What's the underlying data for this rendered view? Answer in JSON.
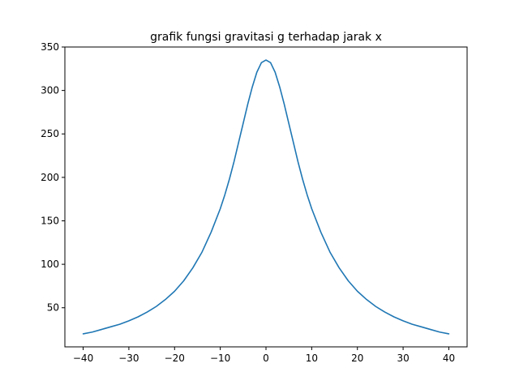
{
  "chart_data": {
    "type": "line",
    "title": "grafik fungsi gravitasi g terhadap jarak x",
    "xlabel": "",
    "ylabel": "",
    "xlim": [
      -44,
      44
    ],
    "ylim": [
      5,
      350
    ],
    "xticks": [
      -40,
      -30,
      -20,
      -10,
      0,
      10,
      20,
      30,
      40
    ],
    "xtick_labels": [
      "−40",
      "−30",
      "−20",
      "−10",
      "0",
      "10",
      "20",
      "30",
      "40"
    ],
    "yticks": [
      50,
      100,
      150,
      200,
      250,
      300,
      350
    ],
    "ytick_labels": [
      "50",
      "100",
      "150",
      "200",
      "250",
      "300",
      "350"
    ],
    "grid": false,
    "series": [
      {
        "color": "#1f77b4",
        "x": [
          -40,
          -38,
          -36,
          -34,
          -32,
          -30,
          -28,
          -26,
          -24,
          -22,
          -20,
          -18,
          -16,
          -14,
          -12,
          -10,
          -9,
          -8,
          -7,
          -6,
          -5,
          -4,
          -3,
          -2,
          -1,
          0,
          1,
          2,
          3,
          4,
          5,
          6,
          7,
          8,
          9,
          10,
          12,
          14,
          16,
          18,
          20,
          22,
          24,
          26,
          28,
          30,
          32,
          34,
          36,
          38,
          40
        ],
        "y": [
          20,
          22,
          25,
          28,
          31,
          35,
          39.5,
          45,
          51.5,
          59.5,
          69,
          81,
          96,
          114,
          137,
          164,
          180,
          198,
          218,
          240,
          262,
          284,
          304,
          321,
          332,
          335,
          332,
          321,
          304,
          284,
          262,
          240,
          218,
          198,
          180,
          164,
          137,
          114,
          96,
          81,
          69,
          59.5,
          51.5,
          45,
          39.5,
          35,
          31,
          28,
          25,
          22,
          20
        ]
      }
    ]
  }
}
